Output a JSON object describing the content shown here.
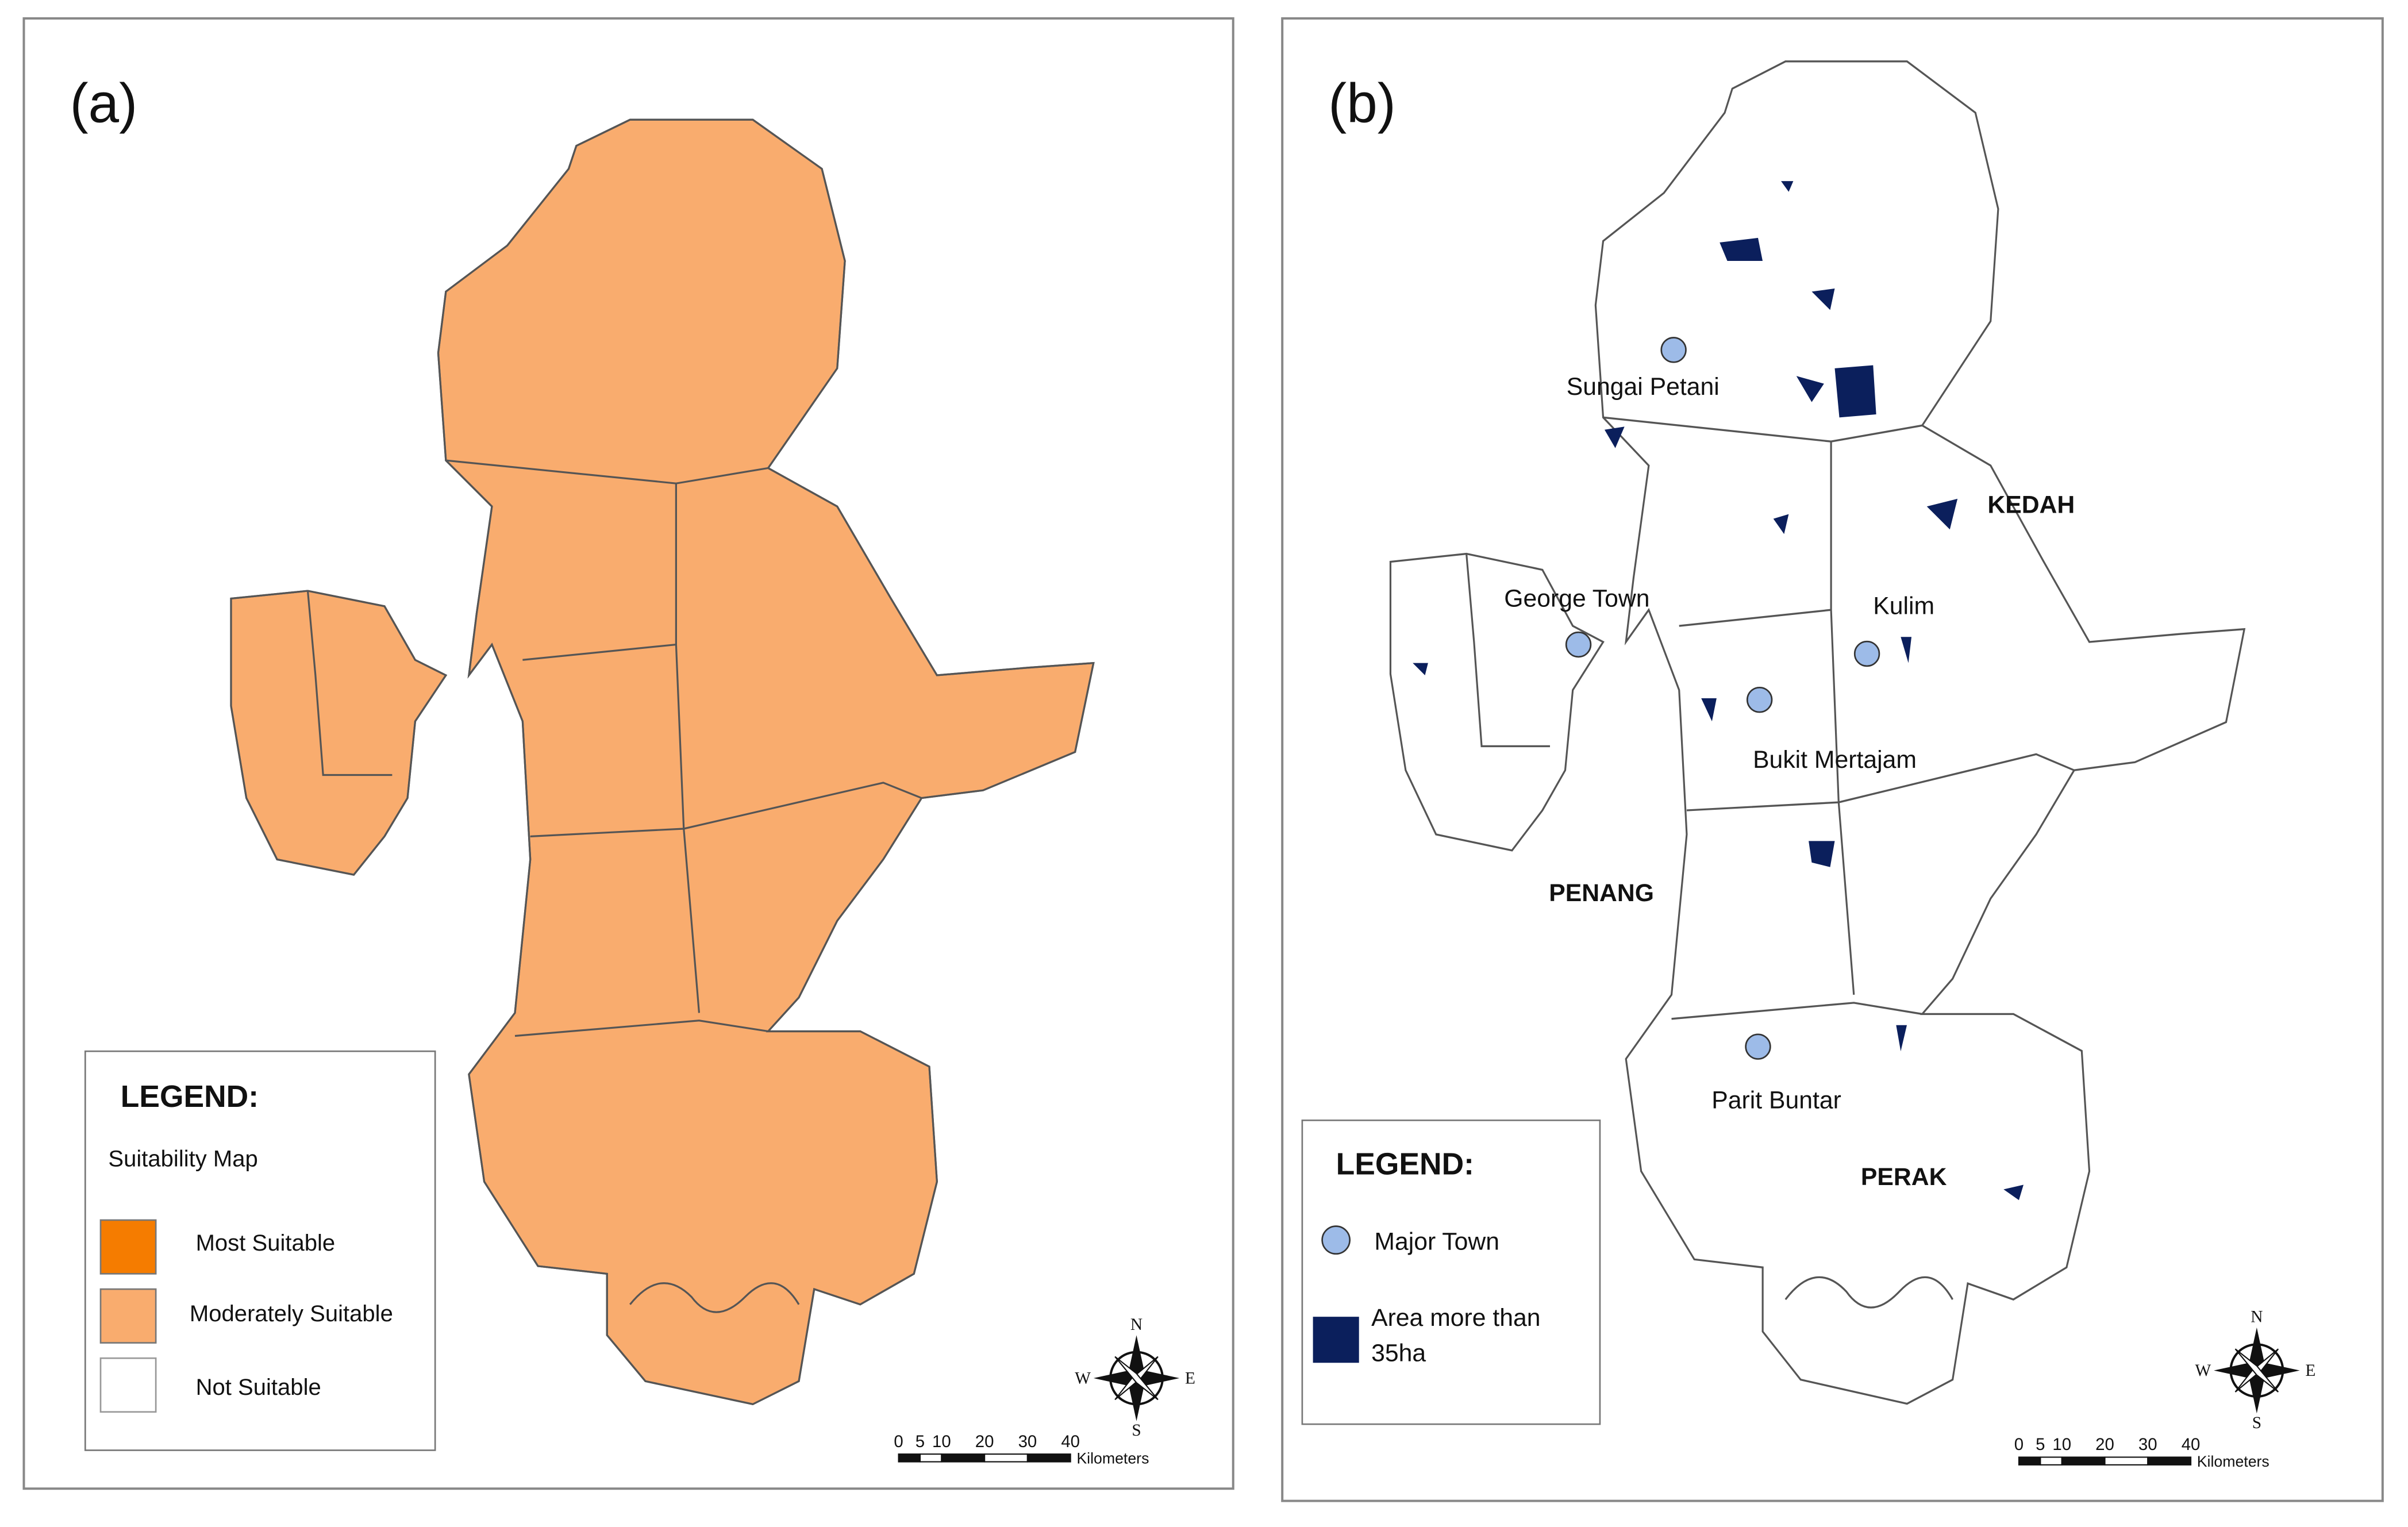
{
  "panels": [
    {
      "label": "(a)",
      "legend": {
        "title": "LEGEND:",
        "subtitle": "Suitability Map",
        "items": [
          "Most Suitable",
          "Moderately Suitable",
          "Not Suitable"
        ]
      },
      "compass": {
        "north": "N",
        "south": "S",
        "east": "E",
        "west": "W"
      },
      "scale_bar": {
        "ticks": [
          0,
          5,
          10,
          20,
          30,
          40
        ],
        "unit": "Kilometers"
      }
    },
    {
      "label": "(b)",
      "legend": {
        "title": "LEGEND:",
        "items": [
          "Major Town",
          "Area more than 35ha"
        ]
      },
      "towns": [
        "Sungai Petani",
        "George Town",
        "Kulim",
        "Bukit Mertajam",
        "Parit Buntar"
      ],
      "regions": [
        "KEDAH",
        "PENANG",
        "PERAK"
      ],
      "compass": {
        "north": "N",
        "south": "S",
        "east": "E",
        "west": "W"
      },
      "scale_bar": {
        "ticks": [
          0,
          5,
          10,
          20,
          30,
          40
        ],
        "unit": "Kilometers"
      }
    }
  ]
}
